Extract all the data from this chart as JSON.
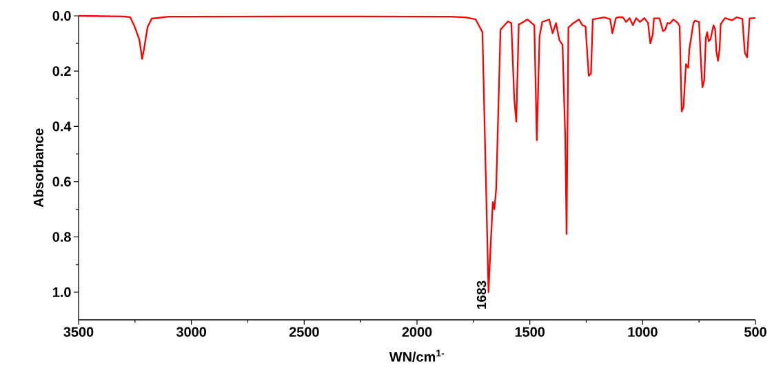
{
  "chart_data": {
    "type": "line",
    "xlabel": "WN/cm$^{1-}$",
    "ylabel": "Absorbance",
    "x": [
      3500,
      3300,
      3271,
      3253,
      3231,
      3218,
      3210,
      3194,
      3176,
      3100,
      2500,
      1850,
      1780,
      1740,
      1710,
      1683,
      1674,
      1664,
      1657,
      1649,
      1630,
      1597,
      1582,
      1569,
      1560,
      1549,
      1545,
      1511,
      1480,
      1469,
      1457,
      1445,
      1414,
      1399,
      1384,
      1369,
      1355,
      1343,
      1337,
      1329,
      1307,
      1282,
      1267,
      1253,
      1239,
      1229,
      1221,
      1170,
      1144,
      1134,
      1119,
      1109,
      1088,
      1073,
      1058,
      1043,
      1029,
      1012,
      992,
      976,
      966,
      955,
      950,
      925,
      910,
      900,
      890,
      880,
      864,
      844,
      836,
      827,
      819,
      808,
      798,
      793,
      775,
      768,
      750,
      740,
      735,
      727,
      720,
      714,
      707,
      699,
      686,
      679,
      673,
      666,
      659,
      654,
      635,
      604,
      583,
      558,
      547,
      537,
      526,
      500
    ],
    "series": [
      {
        "color": "#ff0000",
        "values": [
          0,
          0.002,
          0.005,
          0.036,
          0.085,
          0.156,
          0.12,
          0.04,
          0.01,
          0.003,
          0.002,
          0.003,
          0.006,
          0.013,
          0.059,
          1.0,
          0.836,
          0.674,
          0.7,
          0.624,
          0.05,
          0.02,
          0.026,
          0.3,
          0.383,
          0.03,
          0.03,
          0.013,
          0.034,
          0.45,
          0.075,
          0.022,
          0.013,
          0.063,
          0.026,
          0.088,
          0.105,
          0.44,
          0.79,
          0.042,
          0.026,
          0.013,
          0.034,
          0.038,
          0.217,
          0.209,
          0.013,
          0.005,
          0.012,
          0.063,
          0.009,
          0.005,
          0.005,
          0.022,
          0.008,
          0.034,
          0.008,
          0.022,
          0.008,
          0.026,
          0.1,
          0.067,
          0.009,
          0.009,
          0.055,
          0.05,
          0.026,
          0.028,
          0.013,
          0.026,
          0.038,
          0.346,
          0.33,
          0.175,
          0.188,
          0.121,
          0.026,
          0.017,
          0.022,
          0.192,
          0.259,
          0.233,
          0.08,
          0.059,
          0.092,
          0.084,
          0.034,
          0.047,
          0.13,
          0.163,
          0.121,
          0.03,
          0.008,
          0.016,
          0.005,
          0.011,
          0.134,
          0.15,
          0.009,
          0.008
        ]
      }
    ],
    "xlim": [
      3500,
      500
    ],
    "ylim": [
      1.1,
      0
    ],
    "xticks": [
      3500,
      3000,
      2500,
      2000,
      1500,
      1000,
      500
    ],
    "yticks": [
      {
        "value": 0,
        "label": "0.0"
      },
      {
        "value": 0.2,
        "label": "0.2"
      },
      {
        "value": 0.4,
        "label": "0.4"
      },
      {
        "value": 0.6,
        "label": "0.6"
      },
      {
        "value": 0.8,
        "label": "0.8"
      },
      {
        "value": 1.0,
        "label": "1.0"
      }
    ],
    "annotations": [
      {
        "text": "1683",
        "x": 1683,
        "y": 1.0
      }
    ]
  }
}
